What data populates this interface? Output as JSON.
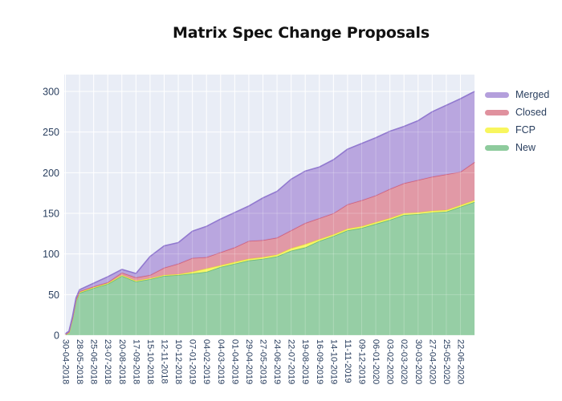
{
  "title": "Matrix Spec Change Proposals",
  "legend": {
    "items": [
      {
        "label": "Merged",
        "color": "#b49fdc",
        "line_color": "#9179cf"
      },
      {
        "label": "Closed",
        "color": "#e0919e",
        "line_color": "#d2607a"
      },
      {
        "label": "FCP",
        "color": "#f8f65e",
        "line_color": "#eeeb3a"
      },
      {
        "label": "New",
        "color": "#8ecb9d",
        "line_color": "#67b87e"
      }
    ]
  },
  "chart_data": {
    "type": "area",
    "stacked": true,
    "title": "Matrix Spec Change Proposals",
    "xlabel": "",
    "ylabel": "",
    "grid": true,
    "legend_position": "right",
    "plot_bg": "#e9edf6",
    "grid_color": "#ffffff",
    "axis_label_color": "#2a3f5f",
    "y_ticks": [
      0,
      50,
      100,
      150,
      200,
      250,
      300
    ],
    "ylim": [
      0,
      320
    ],
    "x_tick_labels": [
      "30-04-2018",
      "28-05-2018",
      "25-06-2018",
      "23-07-2018",
      "20-08-2018",
      "17-09-2018",
      "15-10-2018",
      "12-11-2018",
      "10-12-2018",
      "07-01-2019",
      "04-02-2019",
      "04-03-2019",
      "01-04-2019",
      "29-04-2019",
      "27-05-2019",
      "24-06-2019",
      "22-07-2019",
      "19-08-2019",
      "16-09-2019",
      "14-10-2019",
      "11-11-2019",
      "09-12-2019",
      "06-01-2020",
      "03-02-2020",
      "02-03-2020",
      "30-03-2020",
      "27-04-2020",
      "25-05-2020",
      "22-06-2020"
    ],
    "dates": [
      "30-04-2018",
      "07-05-2018",
      "14-05-2018",
      "21-05-2018",
      "28-05-2018",
      "25-06-2018",
      "23-07-2018",
      "20-08-2018",
      "17-09-2018",
      "15-10-2018",
      "12-11-2018",
      "10-12-2018",
      "07-01-2019",
      "04-02-2019",
      "04-03-2019",
      "01-04-2019",
      "29-04-2019",
      "27-05-2019",
      "24-06-2019",
      "22-07-2019",
      "19-08-2019",
      "16-09-2019",
      "14-10-2019",
      "11-11-2019",
      "09-12-2019",
      "06-01-2020",
      "03-02-2020",
      "02-03-2020",
      "30-03-2020",
      "27-04-2020",
      "25-05-2020",
      "22-06-2020",
      "20-07-2020"
    ],
    "series": [
      {
        "name": "New",
        "values": [
          1,
          3,
          20,
          42,
          52,
          58,
          63,
          73,
          66,
          69,
          73,
          74,
          76,
          78,
          84,
          88,
          92,
          94,
          97,
          104,
          108,
          116,
          122,
          129,
          132,
          137,
          142,
          148,
          149,
          151,
          152,
          158,
          164
        ]
      },
      {
        "name": "FCP",
        "values": [
          0,
          0,
          0,
          1,
          1,
          1,
          1,
          1,
          1,
          1,
          1,
          1,
          2,
          4,
          2,
          2,
          2,
          2,
          2,
          3,
          4,
          2,
          2,
          2,
          2,
          2,
          2,
          2,
          2,
          2,
          2,
          2,
          2
        ]
      },
      {
        "name": "Closed",
        "values": [
          0,
          1,
          1,
          1,
          1,
          1,
          1,
          3,
          4,
          4,
          9,
          13,
          17,
          14,
          16,
          18,
          22,
          21,
          21,
          22,
          26,
          26,
          26,
          30,
          32,
          33,
          36,
          37,
          40,
          42,
          44,
          41,
          47
        ]
      },
      {
        "name": "Merged",
        "values": [
          1,
          1,
          2,
          2,
          2,
          4,
          7,
          4,
          5,
          23,
          27,
          26,
          33,
          38,
          41,
          43,
          43,
          52,
          57,
          63,
          64,
          63,
          66,
          68,
          70,
          71,
          71,
          70,
          73,
          80,
          85,
          90,
          87
        ]
      }
    ]
  }
}
